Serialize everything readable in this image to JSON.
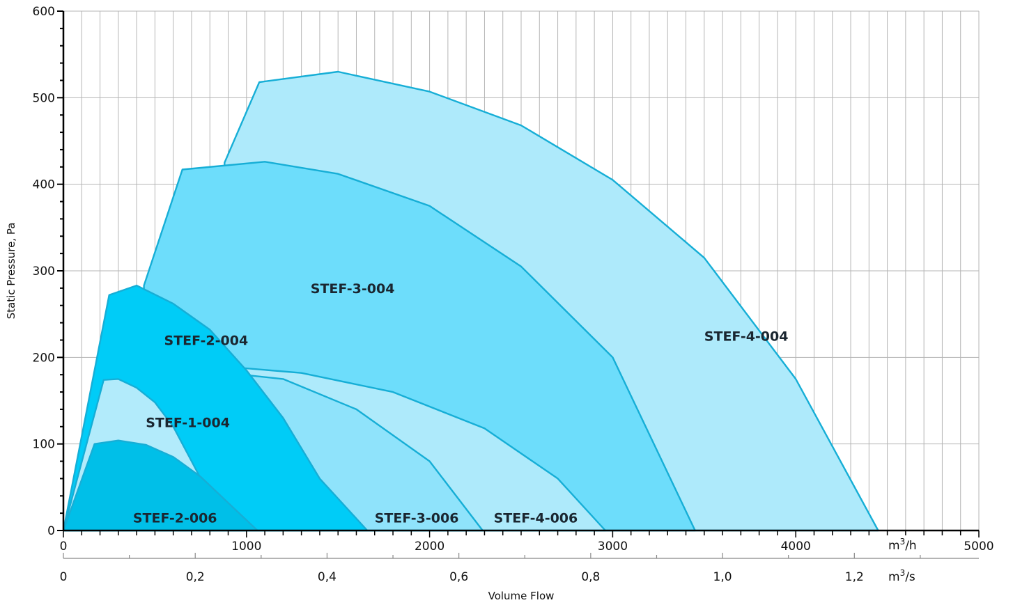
{
  "chart_data": {
    "type": "area",
    "title": "",
    "ylabel": "Static Pressure, Pa",
    "xlabel": "Volume Flow",
    "x_unit": "m3/h",
    "x2_unit": "m3/s",
    "xlim": [
      0,
      5000
    ],
    "ylim": [
      0,
      600
    ],
    "x_ticks": [
      0,
      1000,
      2000,
      3000,
      4000,
      5000
    ],
    "x_tick_labels": [
      "0",
      "1000",
      "2000",
      "3000",
      "4000",
      "5000"
    ],
    "y_ticks": [
      0,
      100,
      200,
      300,
      400,
      500,
      600
    ],
    "y_tick_labels": [
      "0",
      "100",
      "200",
      "300",
      "400",
      "500",
      "600"
    ],
    "x2_ticks": [
      0,
      0.2,
      0.4,
      0.6,
      0.8,
      1.0,
      1.2
    ],
    "x2_tick_labels": [
      "0",
      "0,2",
      "0,4",
      "0,6",
      "0,8",
      "1,0",
      "1,2"
    ],
    "grid": true,
    "series": [
      {
        "name": "STEF-4-004",
        "color": "#aeeafb",
        "label_at": [
          3500,
          225
        ],
        "points": [
          [
            0,
            0
          ],
          [
            880,
            0
          ],
          [
            880,
            425
          ],
          [
            1070,
            518
          ],
          [
            1500,
            530
          ],
          [
            2000,
            507
          ],
          [
            2500,
            468
          ],
          [
            3000,
            405
          ],
          [
            3500,
            315
          ],
          [
            4000,
            175
          ],
          [
            4450,
            0
          ],
          [
            0,
            0
          ]
        ]
      },
      {
        "name": "STEF-3-004",
        "color": "#6dddfb",
        "label_at": [
          1350,
          280
        ],
        "points": [
          [
            0,
            0
          ],
          [
            440,
            0
          ],
          [
            440,
            283
          ],
          [
            650,
            417
          ],
          [
            1100,
            426
          ],
          [
            1500,
            412
          ],
          [
            2000,
            375
          ],
          [
            2500,
            305
          ],
          [
            3000,
            200
          ],
          [
            3450,
            0
          ],
          [
            0,
            0
          ]
        ]
      },
      {
        "name": "STEF-4-006",
        "color": "#aeeafb",
        "label_at": [
          2350,
          15
        ],
        "points": [
          [
            0,
            0
          ],
          [
            480,
            0
          ],
          [
            480,
            168
          ],
          [
            490,
            188
          ],
          [
            850,
            190
          ],
          [
            1300,
            182
          ],
          [
            1800,
            160
          ],
          [
            2300,
            118
          ],
          [
            2700,
            60
          ],
          [
            2960,
            0
          ],
          [
            0,
            0
          ]
        ]
      },
      {
        "name": "STEF-3-006",
        "color": "#8fe3fb",
        "label_at": [
          1700,
          15
        ],
        "points": [
          [
            0,
            0
          ],
          [
            560,
            0
          ],
          [
            560,
            148
          ],
          [
            710,
            186
          ],
          [
            1200,
            175
          ],
          [
            1600,
            140
          ],
          [
            2000,
            80
          ],
          [
            2290,
            0
          ],
          [
            0,
            0
          ]
        ]
      },
      {
        "name": "STEF-2-004",
        "color": "#00ccf7",
        "label_at": [
          550,
          220
        ],
        "points": [
          [
            0,
            0
          ],
          [
            250,
            272
          ],
          [
            400,
            283
          ],
          [
            600,
            262
          ],
          [
            800,
            232
          ],
          [
            1000,
            185
          ],
          [
            1200,
            130
          ],
          [
            1400,
            60
          ],
          [
            1660,
            0
          ],
          [
            0,
            0
          ]
        ]
      },
      {
        "name": "STEF-1-004",
        "color": "#b2ebfb",
        "label_at": [
          450,
          125
        ],
        "points": [
          [
            0,
            0
          ],
          [
            220,
            174
          ],
          [
            300,
            175
          ],
          [
            400,
            165
          ],
          [
            500,
            148
          ],
          [
            600,
            120
          ],
          [
            700,
            80
          ],
          [
            800,
            40
          ],
          [
            900,
            0
          ],
          [
            0,
            0
          ]
        ]
      },
      {
        "name": "STEF-2-006",
        "color": "#00bfe8",
        "label_at": [
          380,
          15
        ],
        "points": [
          [
            0,
            0
          ],
          [
            170,
            100
          ],
          [
            300,
            104
          ],
          [
            450,
            99
          ],
          [
            600,
            85
          ],
          [
            750,
            62
          ],
          [
            900,
            32
          ],
          [
            1060,
            0
          ],
          [
            0,
            0
          ]
        ]
      }
    ]
  }
}
